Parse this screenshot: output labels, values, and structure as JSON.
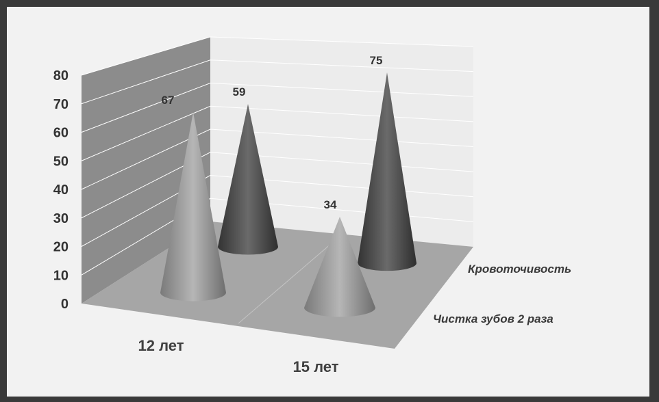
{
  "chart_data": {
    "type": "bar",
    "style": "3d-cone",
    "categories": [
      "12 лет",
      "15 лет"
    ],
    "series": [
      {
        "name": "Чистка зубов 2 раза",
        "values": [
          67,
          34
        ],
        "color": "#9a9a9a"
      },
      {
        "name": "Кровоточивость",
        "values": [
          59,
          75
        ],
        "color": "#5a5a5a"
      }
    ],
    "ylim": [
      0,
      80
    ],
    "y_ticks": [
      "0",
      "10",
      "20",
      "30",
      "40",
      "50",
      "60",
      "70",
      "80"
    ],
    "grid": true,
    "colors": {
      "frame_border": "#3a3a3a",
      "background": "#f2f2f2",
      "left_wall": "#8c8c8c",
      "back_wall": "#ececec",
      "floor": "#a6a6a6",
      "grid": "#ffffff"
    }
  }
}
